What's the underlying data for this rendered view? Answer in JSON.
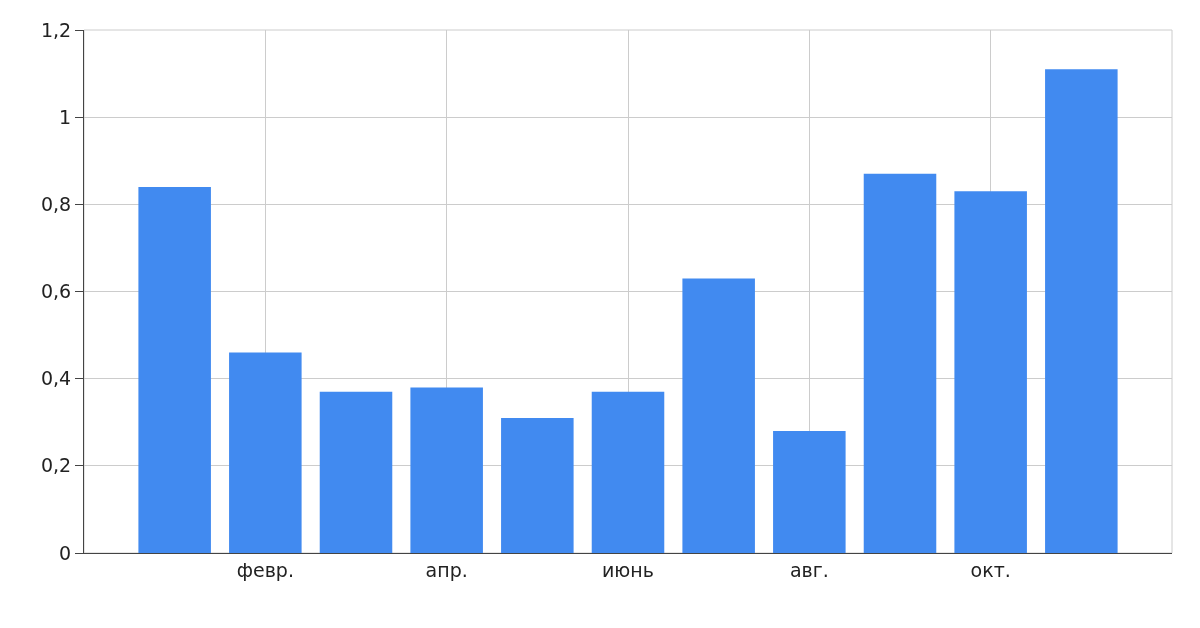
{
  "chart_data": {
    "type": "bar",
    "categories": [
      null,
      "февр.",
      null,
      "апр.",
      null,
      "июнь",
      null,
      "авг.",
      null,
      "окт.",
      null
    ],
    "values": [
      0.84,
      0.46,
      0.37,
      0.38,
      0.31,
      0.37,
      0.63,
      0.28,
      0.87,
      0.83,
      1.11
    ],
    "color": "#418af0",
    "ylim": [
      0,
      1.2
    ],
    "yticks": [
      0,
      {
        "value": 0.2,
        "label": "0,2"
      },
      {
        "value": 0.4,
        "label": "0,4"
      },
      {
        "value": 0.6,
        "label": "0,6"
      },
      {
        "value": 0.8,
        "label": "0,8"
      },
      1,
      {
        "value": 1.2,
        "label": "1,2"
      }
    ],
    "grid": true
  }
}
